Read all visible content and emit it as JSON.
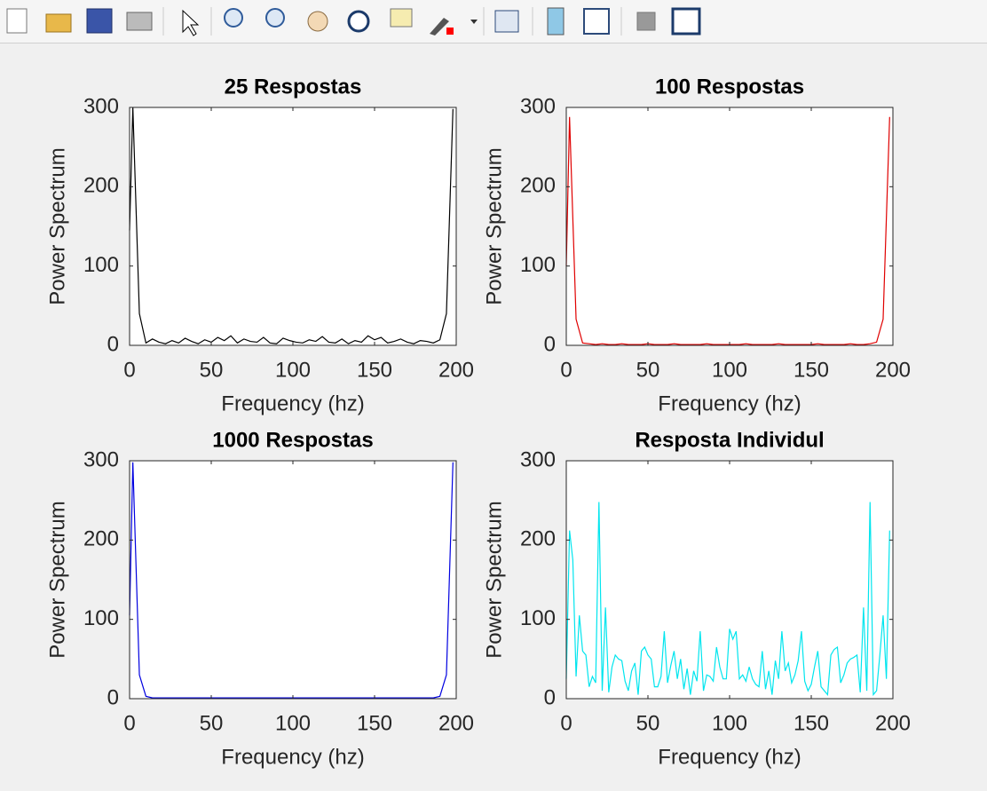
{
  "chart_data": [
    {
      "type": "line",
      "title": "25 Respostas",
      "x_label": "Frequency (hz)",
      "y_label": "Power Spectrum",
      "color": "#000000",
      "x": [
        0,
        2,
        6,
        10,
        14,
        18,
        22,
        26,
        30,
        34,
        38,
        42,
        46,
        50,
        54,
        58,
        62,
        66,
        70,
        74,
        78,
        82,
        86,
        90,
        94,
        98,
        102,
        106,
        110,
        114,
        118,
        122,
        126,
        130,
        134,
        138,
        142,
        146,
        150,
        154,
        158,
        162,
        166,
        170,
        174,
        178,
        182,
        186,
        190,
        194,
        198
      ],
      "values": [
        145,
        300,
        40,
        3,
        8,
        4,
        2,
        6,
        3,
        9,
        5,
        2,
        7,
        4,
        10,
        6,
        12,
        3,
        8,
        5,
        4,
        10,
        3,
        2,
        9,
        6,
        4,
        3,
        7,
        5,
        11,
        4,
        3,
        8,
        2,
        6,
        4,
        12,
        7,
        10,
        3,
        5,
        8,
        4,
        2,
        6,
        5,
        3,
        7,
        40,
        298
      ],
      "xlim": [
        0,
        200
      ],
      "ylim": [
        0,
        300
      ],
      "xticks": [
        0,
        50,
        100,
        150,
        200
      ],
      "yticks": [
        0,
        100,
        200,
        300
      ]
    },
    {
      "type": "line",
      "title": "100 Respostas",
      "x_label": "Frequency (hz)",
      "y_label": "Power Spectrum",
      "color": "#e00000",
      "x": [
        0,
        2,
        6,
        10,
        14,
        18,
        22,
        26,
        30,
        34,
        38,
        42,
        46,
        50,
        54,
        58,
        62,
        66,
        70,
        74,
        78,
        82,
        86,
        90,
        94,
        98,
        102,
        106,
        110,
        114,
        118,
        122,
        126,
        130,
        134,
        138,
        142,
        146,
        150,
        154,
        158,
        162,
        166,
        170,
        174,
        178,
        182,
        186,
        190,
        194,
        198
      ],
      "values": [
        100,
        288,
        33,
        3,
        2,
        1,
        2,
        1,
        1,
        2,
        1,
        1,
        1,
        2,
        1,
        1,
        1,
        2,
        1,
        1,
        1,
        1,
        2,
        1,
        1,
        1,
        1,
        1,
        2,
        1,
        1,
        1,
        1,
        2,
        1,
        1,
        1,
        1,
        1,
        2,
        1,
        1,
        1,
        1,
        2,
        1,
        1,
        2,
        4,
        33,
        288
      ],
      "xlim": [
        0,
        200
      ],
      "ylim": [
        0,
        300
      ],
      "xticks": [
        0,
        50,
        100,
        150,
        200
      ],
      "yticks": [
        0,
        100,
        200,
        300
      ]
    },
    {
      "type": "line",
      "title": "1000 Respostas",
      "x_label": "Frequency (hz)",
      "y_label": "Power Spectrum",
      "color": "#0000e0",
      "x": [
        0,
        2,
        6,
        10,
        14,
        18,
        22,
        26,
        30,
        34,
        38,
        42,
        46,
        50,
        54,
        58,
        62,
        66,
        70,
        74,
        78,
        82,
        86,
        90,
        94,
        98,
        102,
        106,
        110,
        114,
        118,
        122,
        126,
        130,
        134,
        138,
        142,
        146,
        150,
        154,
        158,
        162,
        166,
        170,
        174,
        178,
        182,
        186,
        190,
        194,
        198
      ],
      "values": [
        105,
        298,
        30,
        3,
        1,
        1,
        1,
        1,
        1,
        1,
        1,
        1,
        1,
        1,
        1,
        1,
        1,
        1,
        1,
        1,
        1,
        1,
        1,
        1,
        1,
        1,
        1,
        1,
        1,
        1,
        1,
        1,
        1,
        1,
        1,
        1,
        1,
        1,
        1,
        1,
        1,
        1,
        1,
        1,
        1,
        1,
        1,
        1,
        3,
        30,
        298
      ],
      "xlim": [
        0,
        200
      ],
      "ylim": [
        0,
        300
      ],
      "xticks": [
        0,
        50,
        100,
        150,
        200
      ],
      "yticks": [
        0,
        100,
        200,
        300
      ]
    },
    {
      "type": "line",
      "title": "Resposta Individul",
      "x_label": "Frequency (hz)",
      "y_label": "Power Spectrum",
      "color": "#00e5ee",
      "x": [
        0,
        2,
        4,
        6,
        8,
        10,
        12,
        14,
        16,
        18,
        20,
        22,
        24,
        26,
        28,
        30,
        32,
        34,
        36,
        38,
        40,
        42,
        44,
        46,
        48,
        50,
        52,
        54,
        56,
        58,
        60,
        62,
        64,
        66,
        68,
        70,
        72,
        74,
        76,
        78,
        80,
        82,
        84,
        86,
        88,
        90,
        92,
        94,
        96,
        98,
        100,
        102,
        104,
        106,
        108,
        110,
        112,
        114,
        116,
        118,
        120,
        122,
        124,
        126,
        128,
        130,
        132,
        134,
        136,
        138,
        140,
        142,
        144,
        146,
        148,
        150,
        152,
        154,
        156,
        158,
        160,
        162,
        164,
        166,
        168,
        170,
        172,
        174,
        176,
        178,
        180,
        182,
        184,
        186,
        188,
        190,
        192,
        194,
        196,
        198
      ],
      "values": [
        25,
        212,
        175,
        28,
        105,
        60,
        55,
        15,
        28,
        20,
        248,
        10,
        115,
        8,
        40,
        55,
        50,
        48,
        22,
        10,
        35,
        45,
        5,
        60,
        65,
        55,
        50,
        15,
        15,
        28,
        85,
        20,
        42,
        60,
        25,
        50,
        12,
        38,
        5,
        35,
        22,
        85,
        10,
        30,
        28,
        22,
        65,
        40,
        25,
        25,
        88,
        75,
        85,
        25,
        30,
        22,
        40,
        25,
        18,
        15,
        60,
        12,
        35,
        5,
        48,
        25,
        85,
        35,
        45,
        20,
        30,
        48,
        85,
        22,
        10,
        18,
        40,
        60,
        15,
        10,
        5,
        55,
        62,
        65,
        20,
        30,
        45,
        50,
        52,
        55,
        8,
        115,
        10,
        248,
        5,
        10,
        55,
        105,
        25,
        212
      ],
      "xlim": [
        0,
        200
      ],
      "ylim": [
        0,
        300
      ],
      "xticks": [
        0,
        50,
        100,
        150,
        200
      ],
      "yticks": [
        0,
        100,
        200,
        300
      ]
    }
  ]
}
